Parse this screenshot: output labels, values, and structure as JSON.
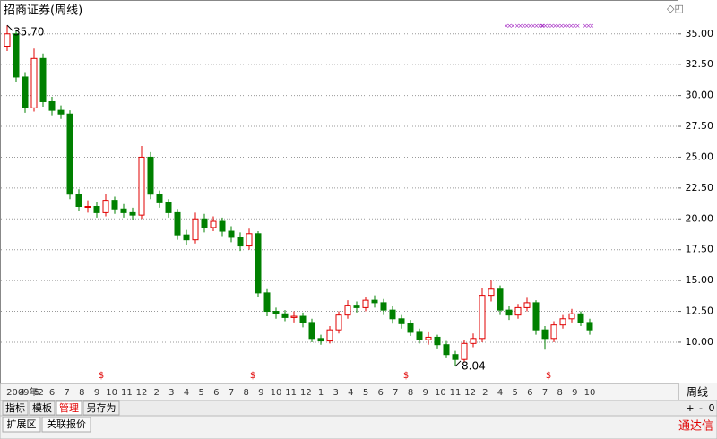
{
  "chart_data": {
    "type": "candlestick",
    "title": "招商证券(周线)",
    "x_labels": [
      "2009年2",
      "4",
      "5",
      "6",
      "7",
      "8",
      "9",
      "10",
      "11",
      "12",
      "2",
      "3",
      "4",
      "5",
      "6",
      "7",
      "8",
      "9",
      "10",
      "11",
      "12",
      "1",
      "3",
      "4",
      "5",
      "6",
      "7",
      "8",
      "9",
      "10",
      "11",
      "12",
      "2",
      "4",
      "5",
      "6",
      "7",
      "8",
      "9",
      "10"
    ],
    "open": [
      34.0,
      35.0,
      31.5,
      29.0,
      33.0,
      29.5,
      28.8,
      28.5,
      22.0,
      21.0,
      21.0,
      20.5,
      21.5,
      20.8,
      20.5,
      20.3,
      25.0,
      22.0,
      21.3,
      20.5,
      18.7,
      18.3,
      20.0,
      19.3,
      19.8,
      19.0,
      18.5,
      17.8,
      18.8,
      14.0,
      12.5,
      12.3,
      12.0,
      12.1,
      11.6,
      10.3,
      10.1,
      11.0,
      12.2,
      13.0,
      12.8,
      13.4,
      13.2,
      12.6,
      11.9,
      11.5,
      10.8,
      10.2,
      10.4,
      9.8,
      9.0,
      8.6,
      9.9,
      10.3,
      13.8,
      14.3,
      12.6,
      12.2,
      12.8,
      13.2,
      11.0,
      10.3,
      11.4,
      11.9,
      12.3,
      11.6
    ],
    "high": [
      35.7,
      35.3,
      31.9,
      33.8,
      33.4,
      29.9,
      29.2,
      28.8,
      22.4,
      21.5,
      21.4,
      22.0,
      21.8,
      21.2,
      20.9,
      25.9,
      25.4,
      22.3,
      21.6,
      20.8,
      19.1,
      20.5,
      20.4,
      20.2,
      20.1,
      19.4,
      18.9,
      19.2,
      19.0,
      14.3,
      12.8,
      12.6,
      12.5,
      12.4,
      11.9,
      10.6,
      11.3,
      12.5,
      13.4,
      13.3,
      13.7,
      13.8,
      13.5,
      12.9,
      12.2,
      11.8,
      11.1,
      10.8,
      10.6,
      10.1,
      9.3,
      10.2,
      10.7,
      14.4,
      15.0,
      14.6,
      12.9,
      13.1,
      13.6,
      13.4,
      11.3,
      11.7,
      12.2,
      12.7,
      12.5,
      11.9
    ],
    "low": [
      33.6,
      31.1,
      28.6,
      28.7,
      29.1,
      28.4,
      28.1,
      21.6,
      20.6,
      20.5,
      20.1,
      20.2,
      20.4,
      20.1,
      19.9,
      20.0,
      21.6,
      20.9,
      20.1,
      18.3,
      17.9,
      18.0,
      18.9,
      19.0,
      18.6,
      18.1,
      17.4,
      17.5,
      13.7,
      12.1,
      11.9,
      11.7,
      11.6,
      11.2,
      10.0,
      9.8,
      9.9,
      10.7,
      11.9,
      12.4,
      12.5,
      12.8,
      12.2,
      11.5,
      11.1,
      10.5,
      9.9,
      9.8,
      9.5,
      8.7,
      8.04,
      8.4,
      9.6,
      10.0,
      13.3,
      12.2,
      11.8,
      11.9,
      12.5,
      10.6,
      9.4,
      10.0,
      11.1,
      11.6,
      11.3,
      10.6
    ],
    "close": [
      35.0,
      31.5,
      29.0,
      33.0,
      29.5,
      28.8,
      28.5,
      22.0,
      21.0,
      21.0,
      20.5,
      21.5,
      20.8,
      20.5,
      20.3,
      25.0,
      22.0,
      21.3,
      20.5,
      18.7,
      18.3,
      20.0,
      19.3,
      19.8,
      19.0,
      18.5,
      17.8,
      18.8,
      14.0,
      12.5,
      12.3,
      12.0,
      12.1,
      11.6,
      10.3,
      10.1,
      11.0,
      12.2,
      13.0,
      12.8,
      13.4,
      13.2,
      12.6,
      11.9,
      11.5,
      10.8,
      10.2,
      10.4,
      9.8,
      9.0,
      8.6,
      9.9,
      10.3,
      13.8,
      14.3,
      12.6,
      12.2,
      12.8,
      13.2,
      11.0,
      10.3,
      11.4,
      11.9,
      12.3,
      11.6,
      11.0
    ],
    "up_color": "#e00000",
    "down_color": "#008000",
    "ylim": [
      6.8,
      36.0
    ],
    "yticks": [
      {
        "value": 10,
        "label": "10.00"
      },
      {
        "value": 12.5,
        "label": "12.50"
      },
      {
        "value": 15,
        "label": "15.00"
      },
      {
        "value": 17.5,
        "label": "17.50"
      },
      {
        "value": 20,
        "label": "20.00"
      },
      {
        "value": 22.5,
        "label": "22.50"
      },
      {
        "value": 25,
        "label": "25.00"
      },
      {
        "value": 27.5,
        "label": "27.50"
      },
      {
        "value": 30,
        "label": "30.00"
      },
      {
        "value": 32.5,
        "label": "32.50"
      },
      {
        "value": 35,
        "label": "35.00"
      }
    ],
    "grid": true,
    "annotations": [
      {
        "label": "35.70",
        "value": 35.7
      },
      {
        "label": "8.04",
        "value": 8.04
      }
    ],
    "dividend_markers": [
      "$",
      "$",
      "$",
      "$"
    ]
  },
  "toolbar": {
    "tabs": [
      "指标",
      "模板",
      "管理",
      "另存为"
    ],
    "active": 2
  },
  "period": {
    "label": "周线",
    "buttons": [
      "+",
      "-",
      "0"
    ]
  },
  "footer": {
    "tabs": [
      "扩展区",
      "关联报价"
    ],
    "brand": "通达信"
  }
}
